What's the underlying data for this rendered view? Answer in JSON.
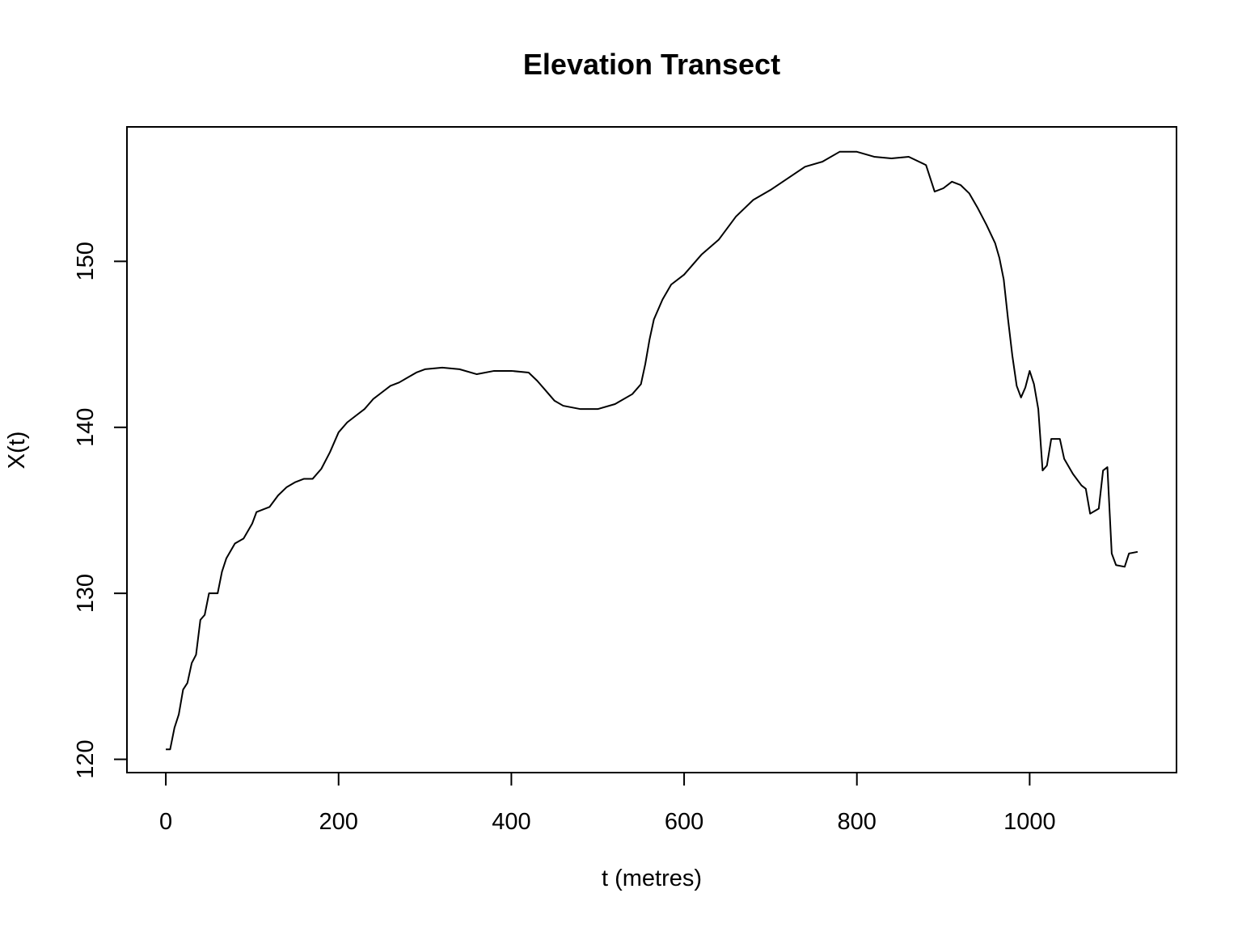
{
  "chart_data": {
    "type": "line",
    "title": "Elevation Transect",
    "xlabel": "t (metres)",
    "ylabel": "X(t)",
    "color": "#000000",
    "x": [
      0,
      5,
      10,
      15,
      20,
      25,
      30,
      35,
      40,
      45,
      50,
      60,
      65,
      70,
      80,
      90,
      100,
      105,
      120,
      130,
      140,
      150,
      160,
      170,
      180,
      190,
      200,
      210,
      220,
      230,
      240,
      250,
      260,
      270,
      280,
      290,
      300,
      320,
      340,
      360,
      380,
      400,
      420,
      430,
      440,
      450,
      460,
      480,
      500,
      520,
      540,
      550,
      555,
      560,
      565,
      575,
      585,
      600,
      620,
      640,
      650,
      660,
      680,
      700,
      720,
      740,
      760,
      780,
      800,
      820,
      840,
      860,
      880,
      890,
      900,
      910,
      920,
      930,
      940,
      950,
      960,
      965,
      970,
      975,
      980,
      985,
      990,
      995,
      1000,
      1005,
      1010,
      1015,
      1020,
      1025,
      1035,
      1040,
      1050,
      1060,
      1065,
      1070,
      1080,
      1085,
      1090,
      1095,
      1100,
      1110,
      1115,
      1125
    ],
    "values": [
      120.6,
      120.6,
      121.9,
      122.7,
      124.2,
      124.6,
      125.8,
      126.3,
      128.4,
      128.7,
      130.0,
      130.0,
      131.3,
      132.1,
      133.0,
      133.3,
      134.2,
      134.9,
      135.2,
      135.9,
      136.4,
      136.7,
      136.9,
      136.9,
      137.5,
      138.5,
      139.7,
      140.3,
      140.7,
      141.1,
      141.7,
      142.1,
      142.5,
      142.7,
      143.0,
      143.3,
      143.5,
      143.6,
      143.5,
      143.2,
      143.4,
      143.4,
      143.3,
      142.8,
      142.2,
      141.6,
      141.3,
      141.1,
      141.1,
      141.4,
      142.0,
      142.6,
      143.8,
      145.3,
      146.5,
      147.7,
      148.6,
      149.2,
      150.4,
      151.3,
      152.0,
      152.7,
      153.7,
      154.3,
      155.0,
      155.7,
      156.0,
      156.6,
      156.6,
      156.3,
      156.2,
      156.3,
      155.8,
      154.2,
      154.4,
      154.8,
      154.6,
      154.1,
      153.2,
      152.2,
      151.1,
      150.2,
      148.9,
      146.5,
      144.3,
      142.5,
      141.8,
      142.4,
      143.4,
      142.6,
      141.1,
      137.4,
      137.7,
      139.3,
      139.3,
      138.1,
      137.2,
      136.5,
      136.3,
      134.8,
      135.1,
      137.4,
      137.6,
      132.4,
      131.7,
      131.6,
      132.4,
      132.5
    ],
    "xlim": [
      -45,
      1170
    ],
    "ylim": [
      119.2,
      158.1
    ],
    "xticks": [
      0,
      200,
      400,
      600,
      800,
      1000
    ],
    "yticks": [
      120,
      130,
      140,
      150
    ]
  }
}
